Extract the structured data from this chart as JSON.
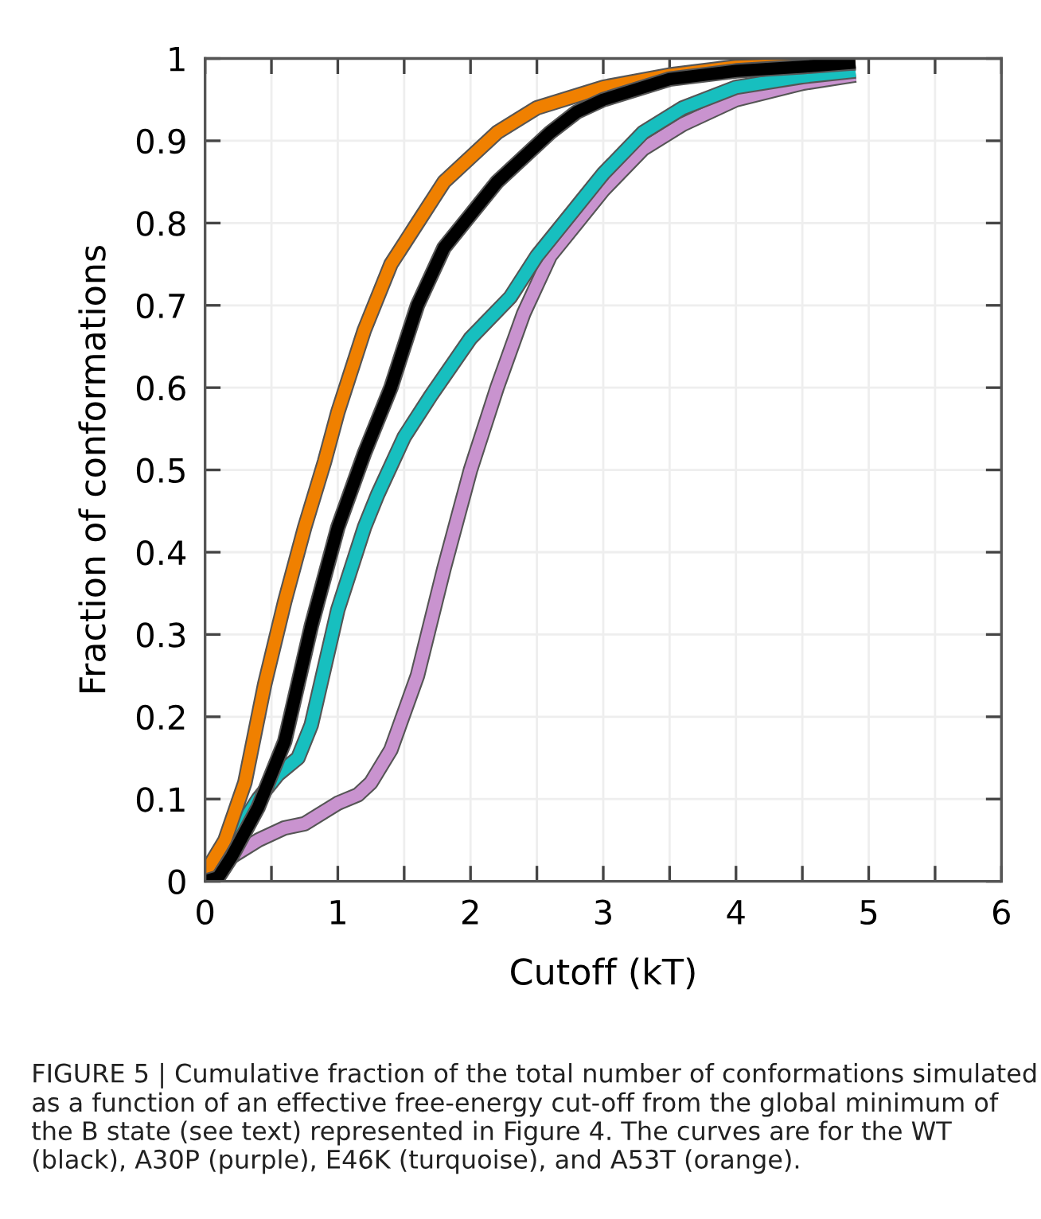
{
  "chart_data": {
    "type": "line",
    "xlabel": "Cutoff (kT)",
    "ylabel": "Fraction of conformations",
    "xlim": [
      0,
      6
    ],
    "ylim": [
      0,
      1
    ],
    "xticks": [
      0,
      {
        "value": 0.5,
        "label": null
      },
      1,
      {
        "value": 1.5,
        "label": null
      },
      2,
      {
        "value": 2.5,
        "label": null
      },
      3,
      {
        "value": 3.5,
        "label": null
      },
      4,
      {
        "value": 4.5,
        "label": null
      },
      5,
      {
        "value": 5.5,
        "label": null
      },
      6
    ],
    "yticks": [
      0,
      0.1,
      0.2,
      0.3,
      0.4,
      0.5,
      0.6,
      0.7,
      0.8,
      0.9,
      1
    ],
    "grid": true,
    "legend": false,
    "marker": "none",
    "line_style": "solid",
    "series": [
      {
        "color": "#c993cf",
        "x": [
          0.2,
          0.4,
          0.6,
          0.75,
          1.0,
          1.15,
          1.25,
          1.4,
          1.6,
          1.8,
          2.0,
          2.2,
          2.4,
          2.6,
          2.8,
          3.0,
          3.3,
          3.6,
          4.0,
          4.5,
          4.9
        ],
        "values": [
          0.03,
          0.05,
          0.065,
          0.07,
          0.095,
          0.105,
          0.12,
          0.16,
          0.25,
          0.38,
          0.5,
          0.6,
          0.69,
          0.76,
          0.8,
          0.84,
          0.89,
          0.92,
          0.95,
          0.97,
          0.98
        ]
      },
      {
        "color": "#17bfbf",
        "x": [
          0,
          0.2,
          0.4,
          0.55,
          0.7,
          0.8,
          1.0,
          1.2,
          1.3,
          1.5,
          1.7,
          2.0,
          2.3,
          2.5,
          2.8,
          3.0,
          3.3,
          3.6,
          4.0,
          4.5,
          4.9
        ],
        "values": [
          0.01,
          0.05,
          0.1,
          0.13,
          0.15,
          0.19,
          0.33,
          0.43,
          0.47,
          0.54,
          0.59,
          0.66,
          0.71,
          0.76,
          0.82,
          0.86,
          0.91,
          0.94,
          0.965,
          0.978,
          0.985
        ]
      },
      {
        "color": "#f08000",
        "x": [
          0,
          0.15,
          0.3,
          0.45,
          0.6,
          0.75,
          0.9,
          1.0,
          1.2,
          1.4,
          1.6,
          1.8,
          2.0,
          2.2,
          2.5,
          3.0,
          3.5,
          4.0,
          4.9
        ],
        "values": [
          0.01,
          0.05,
          0.12,
          0.24,
          0.34,
          0.43,
          0.51,
          0.57,
          0.67,
          0.75,
          0.8,
          0.85,
          0.88,
          0.91,
          0.94,
          0.965,
          0.98,
          0.99,
          0.995
        ]
      },
      {
        "color": "#000000",
        "x": [
          0,
          0.1,
          0.2,
          0.4,
          0.6,
          0.8,
          1.0,
          1.2,
          1.4,
          1.6,
          1.8,
          2.0,
          2.2,
          2.4,
          2.6,
          2.8,
          3.0,
          3.5,
          4.0,
          4.5,
          4.9
        ],
        "values": [
          0,
          0.005,
          0.03,
          0.09,
          0.17,
          0.31,
          0.43,
          0.52,
          0.6,
          0.7,
          0.77,
          0.81,
          0.85,
          0.88,
          0.91,
          0.935,
          0.95,
          0.975,
          0.985,
          0.99,
          0.995
        ]
      }
    ],
    "annotations": [
      "FIGURE 5 | Cumulative fraction of the total number of conformations simulated as a function of an effective free-energy cut-off from the global minimum of the B state (see text) represented in Figure 4. The curves are for the WT (black), A30P (purple), E46K (turquoise), and A53T (orange)."
    ]
  }
}
